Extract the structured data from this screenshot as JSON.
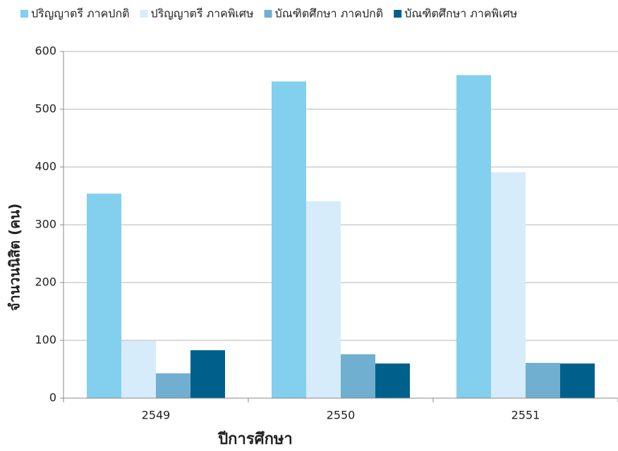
{
  "chart_data": {
    "type": "bar",
    "categories": [
      "2549",
      "2550",
      "2551"
    ],
    "series": [
      {
        "name": "ปริญญาตรี ภาคปกติ",
        "color": "#82cfee",
        "values": [
          354,
          548,
          559
        ]
      },
      {
        "name": "ปริญญาตรี ภาคพิเศษ",
        "color": "#d6ecfa",
        "values": [
          99,
          341,
          391
        ]
      },
      {
        "name": "บัณฑิตศึกษา ภาคปกติ",
        "color": "#70afd0",
        "values": [
          43,
          76,
          61
        ]
      },
      {
        "name": "บัณฑิตศึกษา ภาคพิเศษ",
        "color": "#00608c",
        "values": [
          83,
          60,
          60
        ]
      }
    ],
    "x_label": "ปีการศึกษา",
    "y_label": "จำนวนนิสิต (คน)",
    "ylim": [
      0,
      600
    ],
    "yticks": [
      0,
      100,
      200,
      300,
      400,
      500,
      600
    ],
    "grid": true,
    "legend": "top"
  }
}
